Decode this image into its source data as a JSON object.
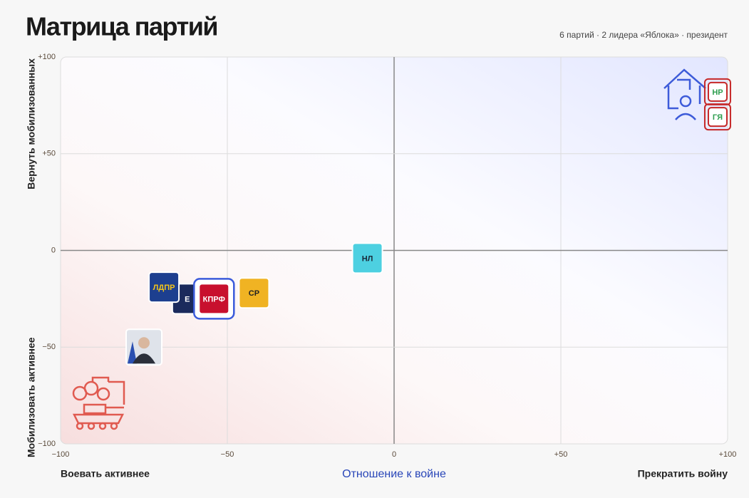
{
  "chart_data": {
    "type": "scatter",
    "title": "Матрица партий",
    "subtitle": "6 партий · 2 лидера «Яблока» · президент",
    "x_label": "Отношение к войне",
    "x_left_label": "Воевать активнее",
    "x_right_label": "Прекратить войну",
    "y_top_label": "Вернуть мобилизованных",
    "y_bottom_label": "Мобилизовать активнее",
    "xlim": [
      -100,
      100
    ],
    "ylim": [
      -100,
      100
    ],
    "xticks": [
      {
        "value": -100,
        "label": "−100"
      },
      {
        "value": -50,
        "label": "−50"
      },
      0,
      {
        "value": 50,
        "label": "+50"
      },
      {
        "value": 100,
        "label": "+100"
      }
    ],
    "yticks": [
      {
        "value": -100,
        "label": "−100"
      },
      {
        "value": -50,
        "label": "−50"
      },
      0,
      {
        "value": 50,
        "label": "+50"
      },
      {
        "value": 100,
        "label": "+100"
      }
    ],
    "grid": true,
    "points": [
      {
        "label": "Е",
        "x": -62,
        "y": -25,
        "color": "#1b2a5c",
        "text_color": "#ffffff"
      },
      {
        "label": "ЛДПР",
        "x": -69,
        "y": -19,
        "color": "#1d3f8f",
        "text_color": "#f5c518"
      },
      {
        "label": "КПРФ",
        "x": -54,
        "y": -25,
        "color": "#c8102e",
        "text_color": "#ffffff",
        "selected": true
      },
      {
        "label": "СР",
        "x": -42,
        "y": -22,
        "color": "#f0b323",
        "text_color": "#222222"
      },
      {
        "label": "НЛ",
        "x": -8,
        "y": -4,
        "color": "#4dd0e1",
        "text_color": "#1a2a3a"
      },
      {
        "x": -75,
        "y": -50,
        "color": "#dfe3ea",
        "portrait": true
      },
      {
        "label": "НР",
        "x": 97,
        "y": 82,
        "color": "#ffffff",
        "text_color": "#2e9e4f",
        "border": "#c62828"
      },
      {
        "label": "ГЯ",
        "x": 97,
        "y": 69,
        "color": "#ffffff",
        "text_color": "#2e9e4f",
        "border": "#c62828"
      }
    ]
  }
}
